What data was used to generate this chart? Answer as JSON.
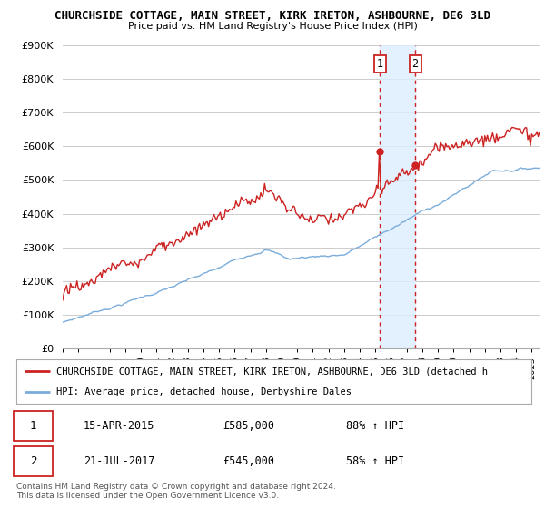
{
  "title": "CHURCHSIDE COTTAGE, MAIN STREET, KIRK IRETON, ASHBOURNE, DE6 3LD",
  "subtitle": "Price paid vs. HM Land Registry's House Price Index (HPI)",
  "ylim": [
    0,
    900000
  ],
  "yticks": [
    0,
    100000,
    200000,
    300000,
    400000,
    500000,
    600000,
    700000,
    800000,
    900000
  ],
  "ytick_labels": [
    "£0",
    "£100K",
    "£200K",
    "£300K",
    "£400K",
    "£500K",
    "£600K",
    "£700K",
    "£800K",
    "£900K"
  ],
  "hpi_color": "#7aaddb",
  "price_color": "#cc2222",
  "sale1_year": 2015.29,
  "sale1_price": 585000,
  "sale1_label": "1",
  "sale1_date": "15-APR-2015",
  "sale1_hpi_pct": "88% ↑ HPI",
  "sale2_year": 2017.55,
  "sale2_price": 545000,
  "sale2_label": "2",
  "sale2_date": "21-JUL-2017",
  "sale2_hpi_pct": "58% ↑ HPI",
  "legend_line1": "CHURCHSIDE COTTAGE, MAIN STREET, KIRK IRETON, ASHBOURNE, DE6 3LD (detached h",
  "legend_line2": "HPI: Average price, detached house, Derbyshire Dales",
  "footnote": "Contains HM Land Registry data © Crown copyright and database right 2024.\nThis data is licensed under the Open Government Licence v3.0.",
  "background_color": "#ffffff",
  "grid_color": "#cccccc",
  "highlight_color": "#ddeeff"
}
